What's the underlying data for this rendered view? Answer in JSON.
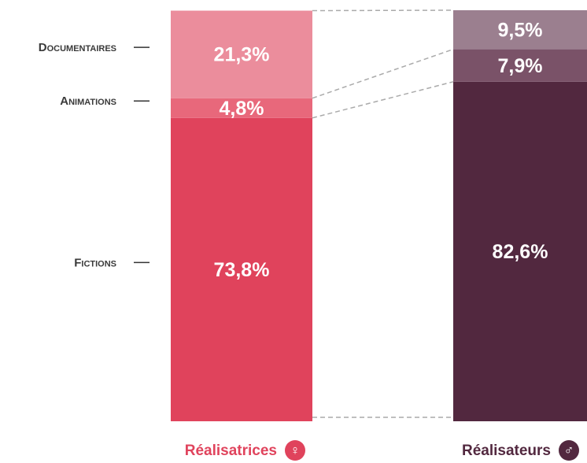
{
  "chart_data": {
    "type": "bar",
    "stacked": true,
    "categories": [
      "Réalisatrices",
      "Réalisateurs"
    ],
    "category_symbols": [
      "♀",
      "♂"
    ],
    "ylim": [
      0,
      100
    ],
    "series": [
      {
        "name": "Fictions",
        "colors": [
          "#e0435c",
          "#52283f"
        ],
        "values": [
          73.8,
          82.6
        ],
        "value_labels": [
          "73,8%",
          "82,6%"
        ]
      },
      {
        "name": "Animations",
        "colors": [
          "#e8687b",
          "#7a5268"
        ],
        "values": [
          4.8,
          7.9
        ],
        "value_labels": [
          "4,8%",
          "7,9%"
        ]
      },
      {
        "name": "Documentaires",
        "colors": [
          "#eb8d9c",
          "#9b7f8f"
        ],
        "values": [
          21.3,
          9.5
        ],
        "value_labels": [
          "21,3%",
          "9,5%"
        ]
      }
    ]
  }
}
